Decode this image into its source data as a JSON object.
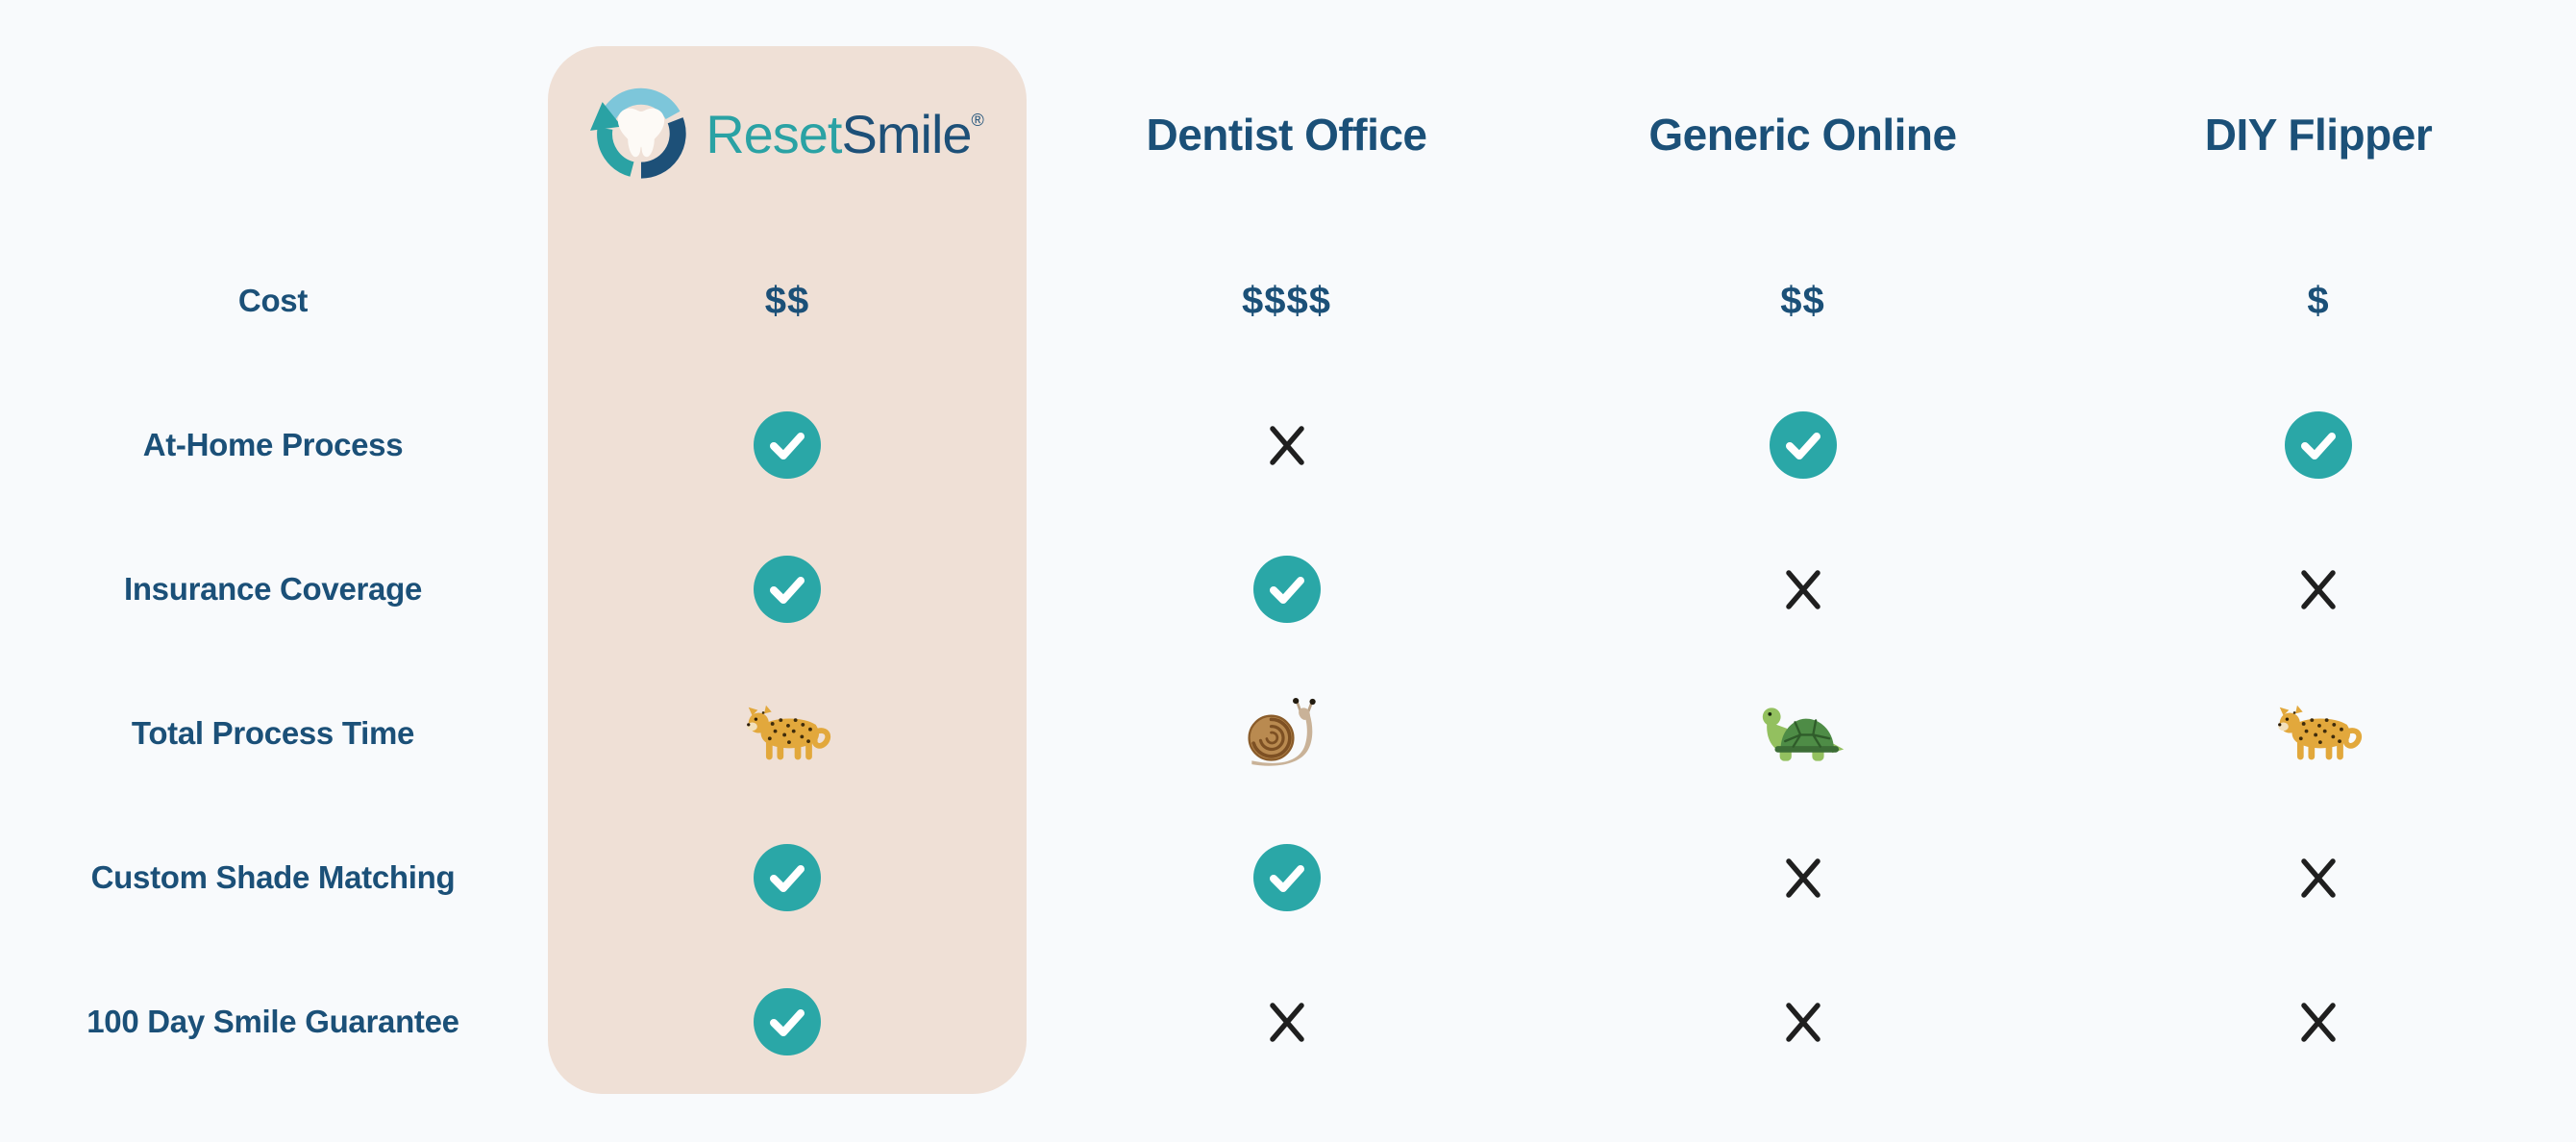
{
  "page": {
    "description": "ResetSmile feature and cost comparison table"
  },
  "brand": {
    "name": "ResetSmile",
    "wordmark_primary": "Reset",
    "wordmark_secondary": "Smile",
    "registered_mark": "®",
    "logo_icon": "tooth-with-reset-arrows"
  },
  "colors": {
    "background": "#f8fafc",
    "panel": "#efe0d6",
    "heading_text": "#1b5078",
    "teal_accent": "#2aa7a7",
    "x_mark": "#1f1f1f",
    "logo_teal": "#2aa2a4",
    "logo_lightblue": "#7dc6da",
    "logo_darkblue": "#1d5078"
  },
  "table": {
    "columns": [
      {
        "key": "resetsmile",
        "label": "ResetSmile",
        "highlighted": true
      },
      {
        "key": "dentist-office",
        "label": "Dentist Office",
        "highlighted": false
      },
      {
        "key": "generic-online",
        "label": "Generic Online",
        "highlighted": false
      },
      {
        "key": "diy-flipper",
        "label": "DIY Flipper",
        "highlighted": false
      }
    ],
    "rows": [
      {
        "key": "cost",
        "label": "Cost",
        "cells": [
          {
            "type": "text",
            "value": "$$"
          },
          {
            "type": "text",
            "value": "$$$$"
          },
          {
            "type": "text",
            "value": "$$"
          },
          {
            "type": "text",
            "value": "$"
          }
        ]
      },
      {
        "key": "at-home-process",
        "label": "At-Home Process",
        "cells": [
          {
            "type": "check"
          },
          {
            "type": "x"
          },
          {
            "type": "check"
          },
          {
            "type": "check"
          }
        ]
      },
      {
        "key": "insurance-coverage",
        "label": "Insurance Coverage",
        "cells": [
          {
            "type": "check"
          },
          {
            "type": "check"
          },
          {
            "type": "x"
          },
          {
            "type": "x"
          }
        ]
      },
      {
        "key": "total-process-time",
        "label": "Total Process Time",
        "cells": [
          {
            "type": "emoji",
            "name": "leopard"
          },
          {
            "type": "emoji",
            "name": "snail"
          },
          {
            "type": "emoji",
            "name": "turtle"
          },
          {
            "type": "emoji",
            "name": "leopard"
          }
        ]
      },
      {
        "key": "custom-shade-matching",
        "label": "Custom Shade Matching",
        "cells": [
          {
            "type": "check"
          },
          {
            "type": "check"
          },
          {
            "type": "x"
          },
          {
            "type": "x"
          }
        ]
      },
      {
        "key": "100-day-smile-guarantee",
        "label": "100 Day Smile Guarantee",
        "cells": [
          {
            "type": "check"
          },
          {
            "type": "x"
          },
          {
            "type": "x"
          },
          {
            "type": "x"
          }
        ]
      }
    ]
  },
  "chart_data": {
    "type": "table",
    "title": "ResetSmile vs competitors comparison",
    "columns": [
      "ResetSmile",
      "Dentist Office",
      "Generic Online",
      "DIY Flipper"
    ],
    "row_labels": [
      "Cost",
      "At-Home Process",
      "Insurance Coverage",
      "Total Process Time",
      "Custom Shade Matching",
      "100 Day Smile Guarantee"
    ],
    "values": [
      [
        "$$",
        "$$$$",
        "$$",
        "$"
      ],
      [
        "yes",
        "no",
        "yes",
        "yes"
      ],
      [
        "yes",
        "yes",
        "no",
        "no"
      ],
      [
        "leopard (fast)",
        "snail (slow)",
        "turtle (slower)",
        "leopard (fast)"
      ],
      [
        "yes",
        "yes",
        "no",
        "no"
      ],
      [
        "yes",
        "no",
        "no",
        "no"
      ]
    ],
    "legend_position": "none",
    "grid": false,
    "layout_hint": "first data column highlighted with beige rounded panel"
  }
}
